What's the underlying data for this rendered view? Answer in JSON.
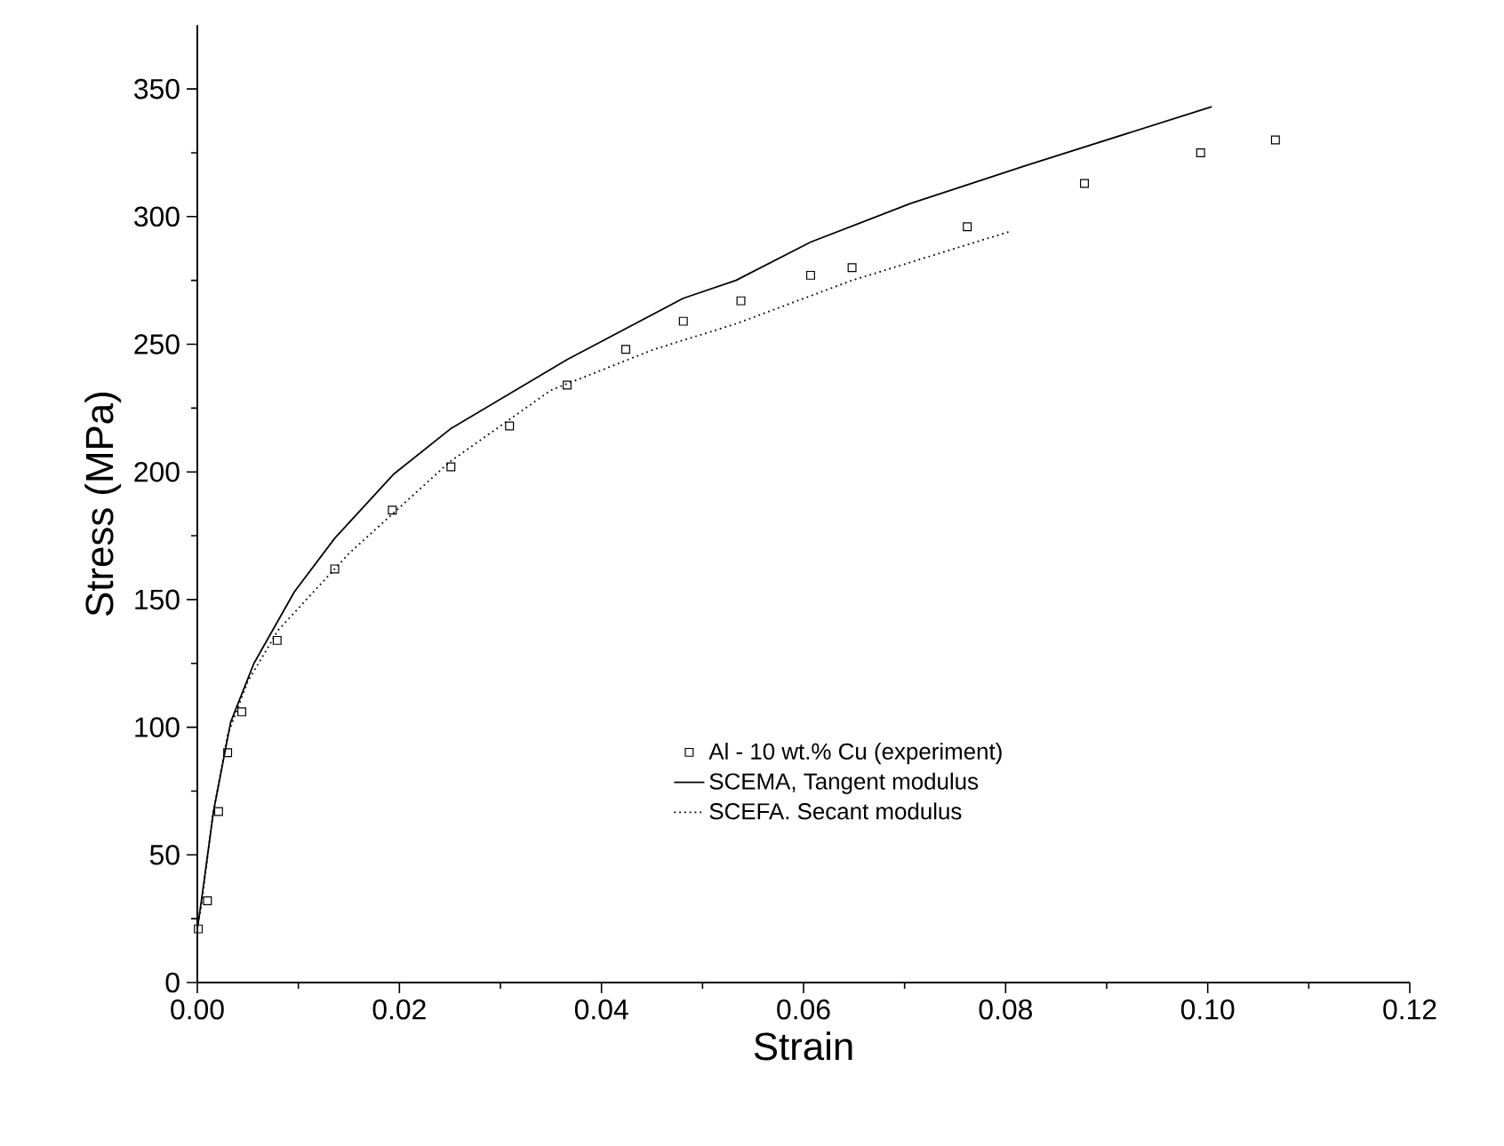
{
  "chart_data": {
    "type": "line",
    "xlabel": "Strain",
    "ylabel": "Stress (MPa)",
    "xlim": [
      0,
      0.12
    ],
    "ylim": [
      0,
      375
    ],
    "xticks": [
      {
        "value": 0,
        "label": "0.00"
      },
      {
        "value": 0.02,
        "label": "0.02"
      },
      {
        "value": 0.04,
        "label": "0.04"
      },
      {
        "value": 0.06,
        "label": "0.06"
      },
      {
        "value": 0.08,
        "label": "0.08"
      },
      {
        "value": 0.1,
        "label": "0.10"
      },
      {
        "value": 0.12,
        "label": "0.12"
      }
    ],
    "yticks": [
      0,
      50,
      100,
      150,
      200,
      250,
      300,
      350
    ],
    "grid": false,
    "legend": "bottom",
    "series": [
      {
        "name": "Al - 10 wt.% Cu (experiment)",
        "type": "scatter",
        "marker": "square",
        "color": "#000000",
        "x": [
          0.0001,
          0.001,
          0.0021,
          0.003,
          0.0044,
          0.0079,
          0.0136,
          0.0193,
          0.0251,
          0.0309,
          0.0366,
          0.0424,
          0.0481,
          0.0538,
          0.0607,
          0.0648,
          0.0762,
          0.0878,
          0.0993,
          0.1067
        ],
        "values": [
          21,
          32,
          67,
          90,
          106,
          134,
          162,
          185,
          202,
          218,
          234,
          248,
          259,
          267,
          277,
          280,
          296,
          313,
          325,
          330
        ]
      },
      {
        "name": "SCEMA, Tangent modulus",
        "line_style": "solid",
        "color": "#000000",
        "x": [
          0,
          0.0004,
          0.0016,
          0.0033,
          0.0056,
          0.0096,
          0.0136,
          0.0194,
          0.0251,
          0.0366,
          0.0481,
          0.0533,
          0.0607,
          0.0705,
          0.082,
          0.1004
        ],
        "values": [
          21,
          32,
          67,
          102,
          125,
          153,
          174,
          199,
          217,
          244,
          268,
          275,
          290,
          305,
          320,
          343
        ]
      },
      {
        "name": "SCEFA. Secant modulus",
        "line_style": "dotted",
        "color": "#000000",
        "x": [
          0,
          0.0004,
          0.0015,
          0.003,
          0.005,
          0.008,
          0.015,
          0.025,
          0.035,
          0.0452,
          0.0533,
          0.0648,
          0.0803
        ],
        "values": [
          21,
          30,
          65,
          97,
          118,
          138,
          168,
          204,
          232,
          248,
          258,
          275,
          294
        ]
      }
    ]
  }
}
